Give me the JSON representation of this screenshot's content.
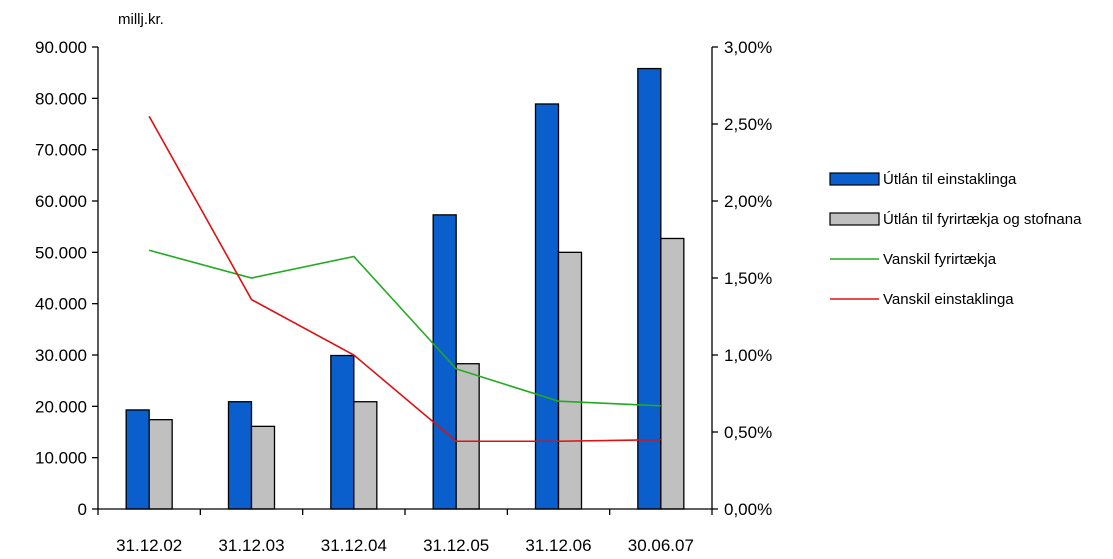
{
  "chart_data": {
    "type": "bar",
    "categories": [
      "31.12.02",
      "31.12.03",
      "31.12.04",
      "31.12.05",
      "31.12.06",
      "30.06.07"
    ],
    "ylabel": "millj.kr.",
    "ylim": [
      0,
      90000
    ],
    "y_ticks": [
      "0",
      "10.000",
      "20.000",
      "30.000",
      "40.000",
      "50.000",
      "60.000",
      "70.000",
      "80.000",
      "90.000"
    ],
    "y2lim": [
      0,
      3.0
    ],
    "y2_ticks": [
      "0,00%",
      "0,50%",
      "1,00%",
      "1,50%",
      "2,00%",
      "2,50%",
      "3,00%"
    ],
    "grid": false,
    "legend_position": "right",
    "series": [
      {
        "name": "Útlán til einstaklinga",
        "type": "bar",
        "axis": "left",
        "color": "#0a5fcc",
        "values": [
          19300,
          20900,
          29900,
          57300,
          78900,
          85800
        ]
      },
      {
        "name": "Útlán til fyrirtækja og stofnana",
        "type": "bar",
        "axis": "left",
        "color": "#c0c0c0",
        "values": [
          17400,
          16100,
          20900,
          28300,
          50000,
          52700
        ]
      },
      {
        "name": "Vanskil fyrirtækja",
        "type": "line",
        "axis": "right",
        "color": "#22aa22",
        "values": [
          1.68,
          1.5,
          1.64,
          0.91,
          0.7,
          0.67
        ]
      },
      {
        "name": "Vanskil einstaklinga",
        "type": "line",
        "axis": "right",
        "color": "#dd1111",
        "values": [
          2.55,
          1.36,
          1.0,
          0.44,
          0.44,
          0.45
        ]
      }
    ]
  }
}
